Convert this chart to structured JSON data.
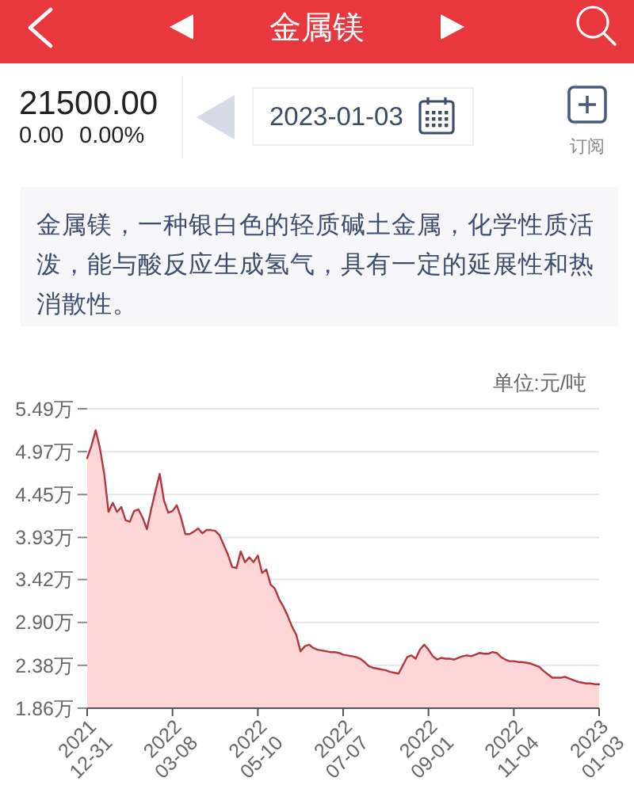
{
  "chart_data": {
    "type": "area",
    "title": "金属镁",
    "ylabel": "单位:元/吨",
    "annotations": [
      "21500.00",
      "0.00",
      "0.00%",
      "2023-01-03",
      "订阅",
      "金属镁，一种银白色的轻质碱土金属，化学性质活泼，能与酸反应生成氢气，具有一定的延展性和热消散性。"
    ],
    "categories": [
      "2021\n12-31",
      null,
      null,
      null,
      null,
      null,
      null,
      null,
      null,
      null,
      null,
      null,
      null,
      null,
      null,
      null,
      null,
      null,
      null,
      null,
      "2022\n03-08",
      null,
      null,
      null,
      null,
      null,
      null,
      null,
      null,
      null,
      null,
      null,
      null,
      null,
      null,
      null,
      null,
      null,
      null,
      null,
      "2022\n05-10",
      null,
      null,
      null,
      null,
      null,
      null,
      null,
      null,
      null,
      null,
      null,
      null,
      null,
      null,
      null,
      null,
      null,
      null,
      null,
      "2022\n07-07",
      null,
      null,
      null,
      null,
      null,
      null,
      null,
      null,
      null,
      null,
      null,
      null,
      null,
      null,
      null,
      null,
      null,
      null,
      null,
      "2022\n09-01",
      null,
      null,
      null,
      null,
      null,
      null,
      null,
      null,
      null,
      null,
      null,
      null,
      null,
      null,
      null,
      null,
      null,
      null,
      null,
      "2022\n11-04",
      null,
      null,
      null,
      null,
      null,
      null,
      null,
      null,
      null,
      null,
      null,
      null,
      null,
      null,
      null,
      null,
      null,
      null,
      null,
      "2023\n01-03"
    ],
    "values": [
      4.89,
      5.04,
      5.23,
      5.01,
      4.7,
      4.24,
      4.35,
      4.24,
      4.3,
      4.14,
      4.12,
      4.25,
      4.27,
      4.17,
      4.03,
      4.27,
      4.49,
      4.7,
      4.38,
      4.23,
      4.25,
      4.32,
      4.17,
      3.97,
      3.97,
      4.0,
      4.04,
      3.98,
      4.02,
      4.02,
      4.01,
      3.96,
      3.84,
      3.72,
      3.57,
      3.56,
      3.76,
      3.63,
      3.69,
      3.63,
      3.71,
      3.5,
      3.54,
      3.36,
      3.31,
      3.18,
      3.09,
      2.98,
      2.85,
      2.75,
      2.55,
      2.61,
      2.63,
      2.59,
      2.57,
      2.56,
      2.55,
      2.54,
      2.54,
      2.53,
      2.51,
      2.5,
      2.49,
      2.48,
      2.46,
      2.42,
      2.37,
      2.35,
      2.34,
      2.33,
      2.32,
      2.3,
      2.29,
      2.28,
      2.38,
      2.48,
      2.5,
      2.46,
      2.57,
      2.63,
      2.57,
      2.49,
      2.45,
      2.47,
      2.46,
      2.46,
      2.45,
      2.47,
      2.49,
      2.5,
      2.49,
      2.51,
      2.53,
      2.52,
      2.52,
      2.54,
      2.53,
      2.48,
      2.45,
      2.43,
      2.43,
      2.42,
      2.42,
      2.41,
      2.4,
      2.38,
      2.36,
      2.31,
      2.27,
      2.23,
      2.23,
      2.23,
      2.24,
      2.22,
      2.2,
      2.18,
      2.17,
      2.16,
      2.16,
      2.15,
      2.15
    ],
    "color": "#b3383c",
    "ylim": [
      1.86,
      5.49
    ],
    "yticks": [
      {
        "value": 1.86,
        "label": "1.86万"
      },
      {
        "value": 2.38,
        "label": "2.38万"
      },
      {
        "value": 2.9,
        "label": "2.90万"
      },
      {
        "value": 3.42,
        "label": "3.42万"
      },
      {
        "value": 3.93,
        "label": "3.93万"
      },
      {
        "value": 4.45,
        "label": "4.45万"
      },
      {
        "value": 4.97,
        "label": "4.97万"
      },
      {
        "value": 5.49,
        "label": "5.49万"
      }
    ],
    "grid": "y"
  }
}
